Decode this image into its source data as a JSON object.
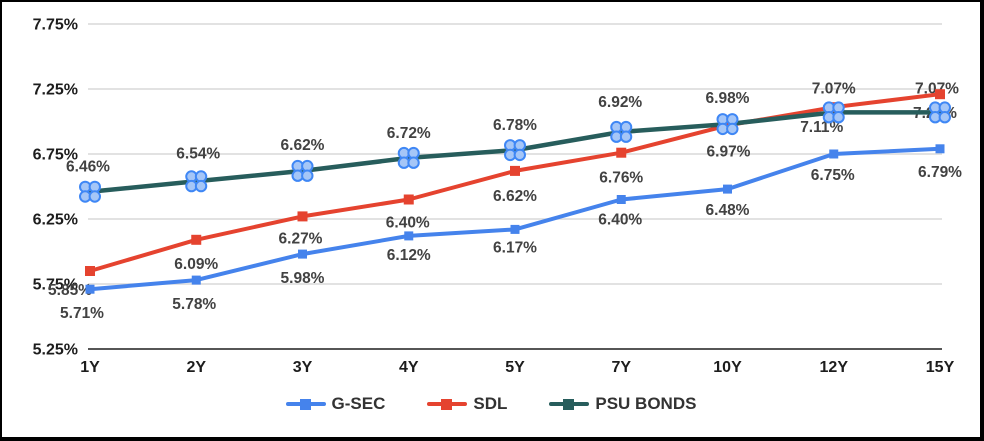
{
  "chart_data": {
    "type": "line",
    "title": "",
    "xlabel": "",
    "ylabel": "",
    "categories": [
      "1Y",
      "2Y",
      "3Y",
      "4Y",
      "5Y",
      "7Y",
      "10Y",
      "12Y",
      "15Y"
    ],
    "series": [
      {
        "name": "G-SEC",
        "color": "#4583ec",
        "marker": "square",
        "marker_size": 9,
        "line_width": 4,
        "values": [
          5.71,
          5.78,
          5.98,
          6.12,
          6.17,
          6.4,
          6.48,
          6.75,
          6.79
        ],
        "labels": [
          "5.71%",
          "5.78%",
          "5.98%",
          "6.12%",
          "6.17%",
          "6.40%",
          "6.48%",
          "6.75%",
          "6.79%"
        ],
        "label_offsets": [
          [
            -8,
            24
          ],
          [
            -2,
            24
          ],
          [
            0,
            24
          ],
          [
            0,
            19
          ],
          [
            0,
            18
          ],
          [
            -1,
            20
          ],
          [
            0,
            21
          ],
          [
            -1,
            21
          ],
          [
            0,
            23
          ]
        ]
      },
      {
        "name": "SDL",
        "color": "#e5432f",
        "marker": "square",
        "marker_size": 10,
        "line_width": 4,
        "values": [
          5.85,
          6.09,
          6.27,
          6.4,
          6.62,
          6.76,
          6.97,
          7.11,
          7.21
        ],
        "labels": [
          "5.85%",
          "6.09%",
          "6.27%",
          "6.40%",
          "6.62%",
          "6.76%",
          "6.97%",
          "7.11%",
          "7.21%"
        ],
        "label_offsets": [
          [
            -20,
            19
          ],
          [
            0,
            24
          ],
          [
            -2,
            22
          ],
          [
            -1,
            23
          ],
          [
            0,
            25
          ],
          [
            0,
            25
          ],
          [
            1,
            26
          ],
          [
            -12,
            20
          ],
          [
            -5,
            19
          ]
        ]
      },
      {
        "name": "PSU BONDS",
        "color": "#275d5c",
        "marker": "clover",
        "marker_size": 10,
        "line_width": 4.5,
        "values": [
          6.46,
          6.54,
          6.62,
          6.72,
          6.78,
          6.92,
          6.98,
          7.07,
          7.07
        ],
        "labels": [
          "6.46%",
          "6.54%",
          "6.62%",
          "6.72%",
          "6.78%",
          "6.92%",
          "6.98%",
          "7.07%",
          "7.07%"
        ],
        "label_offsets": [
          [
            -2,
            -25
          ],
          [
            2,
            -28
          ],
          [
            0,
            -26
          ],
          [
            0,
            -25
          ],
          [
            0,
            -25
          ],
          [
            -1,
            -30
          ],
          [
            0,
            -26
          ],
          [
            0,
            -24
          ],
          [
            -3,
            -24
          ]
        ]
      }
    ],
    "yticks": {
      "values": [
        7.75,
        7.25,
        6.75,
        6.25,
        5.75,
        5.25
      ],
      "labels": [
        "7.75%",
        "7.25%",
        "6.75%",
        "6.25%",
        "5.75%",
        "5.25%"
      ]
    },
    "ylim": [
      5.25,
      7.75
    ],
    "grid": "horizontal-only",
    "legend_position": "bottom-center",
    "marker_accent": {
      "clover_fill": "#a5c6f7",
      "clover_stroke": "#3f87f5",
      "note": "PSU BONDS points show selection-handle clusters of four light-blue circles"
    }
  },
  "colors": {
    "background": "#ffffff",
    "frame_border": "#000000",
    "gridline": "#d9d9d9",
    "baseline_axis": "#565656",
    "axis_text": "#1d1d1d",
    "data_label_text": "#424242",
    "legend_text": "#333333"
  }
}
